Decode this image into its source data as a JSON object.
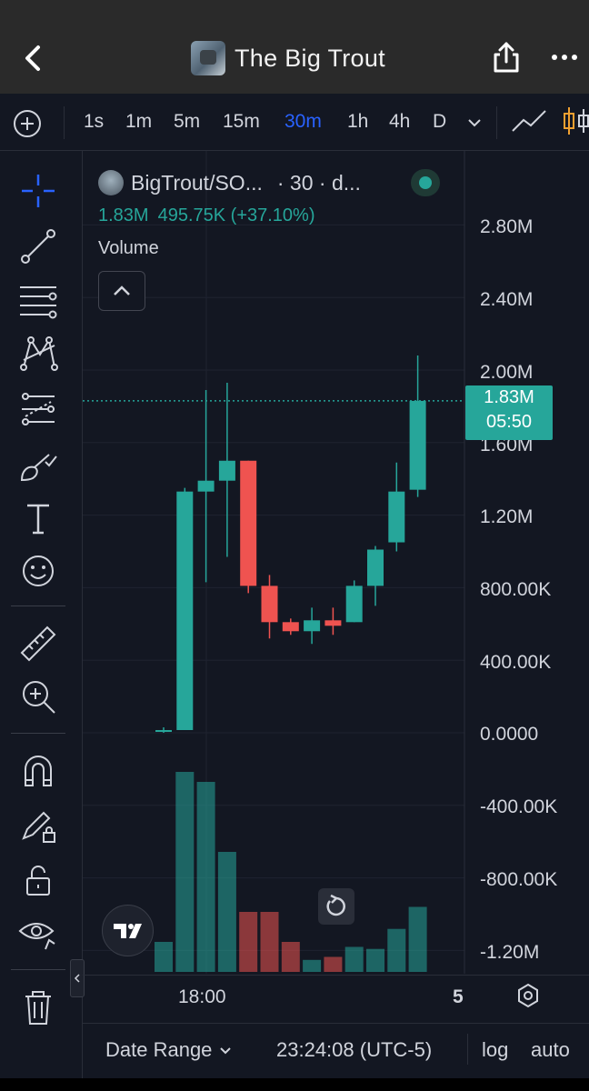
{
  "header": {
    "title": "The Big Trout"
  },
  "timeframes": {
    "items": [
      "1s",
      "1m",
      "5m",
      "15m",
      "30m",
      "1h",
      "4h",
      "D"
    ],
    "active": "30m"
  },
  "legend": {
    "symbol": "BigTrout/SO...",
    "interval": "· 30 · d...",
    "price": "1.83M",
    "change": "495.75K (+37.10%)",
    "volume_label": "Volume"
  },
  "price_axis": {
    "labels": [
      "2.80M",
      "2.40M",
      "2.00M",
      "1.60M",
      "1.20M",
      "800.00K",
      "400.00K",
      "0.0000",
      "-400.00K",
      "-800.00K",
      "-1.20M"
    ]
  },
  "price_tag": {
    "price": "1.83M",
    "countdown": "05:50"
  },
  "time_axis": {
    "labels": [
      "18:00",
      "5"
    ]
  },
  "footer": {
    "date_range": "Date Range",
    "time": "23:24:08 (UTC-5)",
    "log": "log",
    "auto": "auto"
  },
  "colors": {
    "up": "#26a69a",
    "down": "#ef5350",
    "background": "#131722",
    "accent": "#2962ff"
  },
  "chart_data": {
    "type": "candlestick",
    "unit": "price",
    "ylim": [
      -1300000,
      3000000
    ],
    "candles": [
      {
        "open": 15000,
        "high": 30000,
        "low": 0,
        "close": 15000
      },
      {
        "open": 15000,
        "high": 1350000,
        "low": 15000,
        "close": 1330000
      },
      {
        "open": 1330000,
        "high": 1890000,
        "low": 830000,
        "close": 1390000
      },
      {
        "open": 1390000,
        "high": 1930000,
        "low": 970000,
        "close": 1500000
      },
      {
        "open": 1500000,
        "high": 1500000,
        "low": 770000,
        "close": 810000
      },
      {
        "open": 810000,
        "high": 870000,
        "low": 520000,
        "close": 610000
      },
      {
        "open": 610000,
        "high": 630000,
        "low": 540000,
        "close": 560000
      },
      {
        "open": 560000,
        "high": 690000,
        "low": 490000,
        "close": 620000
      },
      {
        "open": 620000,
        "high": 690000,
        "low": 540000,
        "close": 590000
      },
      {
        "open": 610000,
        "high": 840000,
        "low": 610000,
        "close": 810000
      },
      {
        "open": 810000,
        "high": 1030000,
        "low": 700000,
        "close": 1010000
      },
      {
        "open": 1050000,
        "high": 1490000,
        "low": 1000000,
        "close": 1330000
      },
      {
        "open": 1340000,
        "high": 2080000,
        "low": 1300000,
        "close": 1830000
      }
    ],
    "volumes": [
      3,
      20,
      19,
      12,
      6,
      6,
      3,
      1.2,
      1.5,
      2.5,
      2.3,
      4.3,
      6.5
    ]
  }
}
